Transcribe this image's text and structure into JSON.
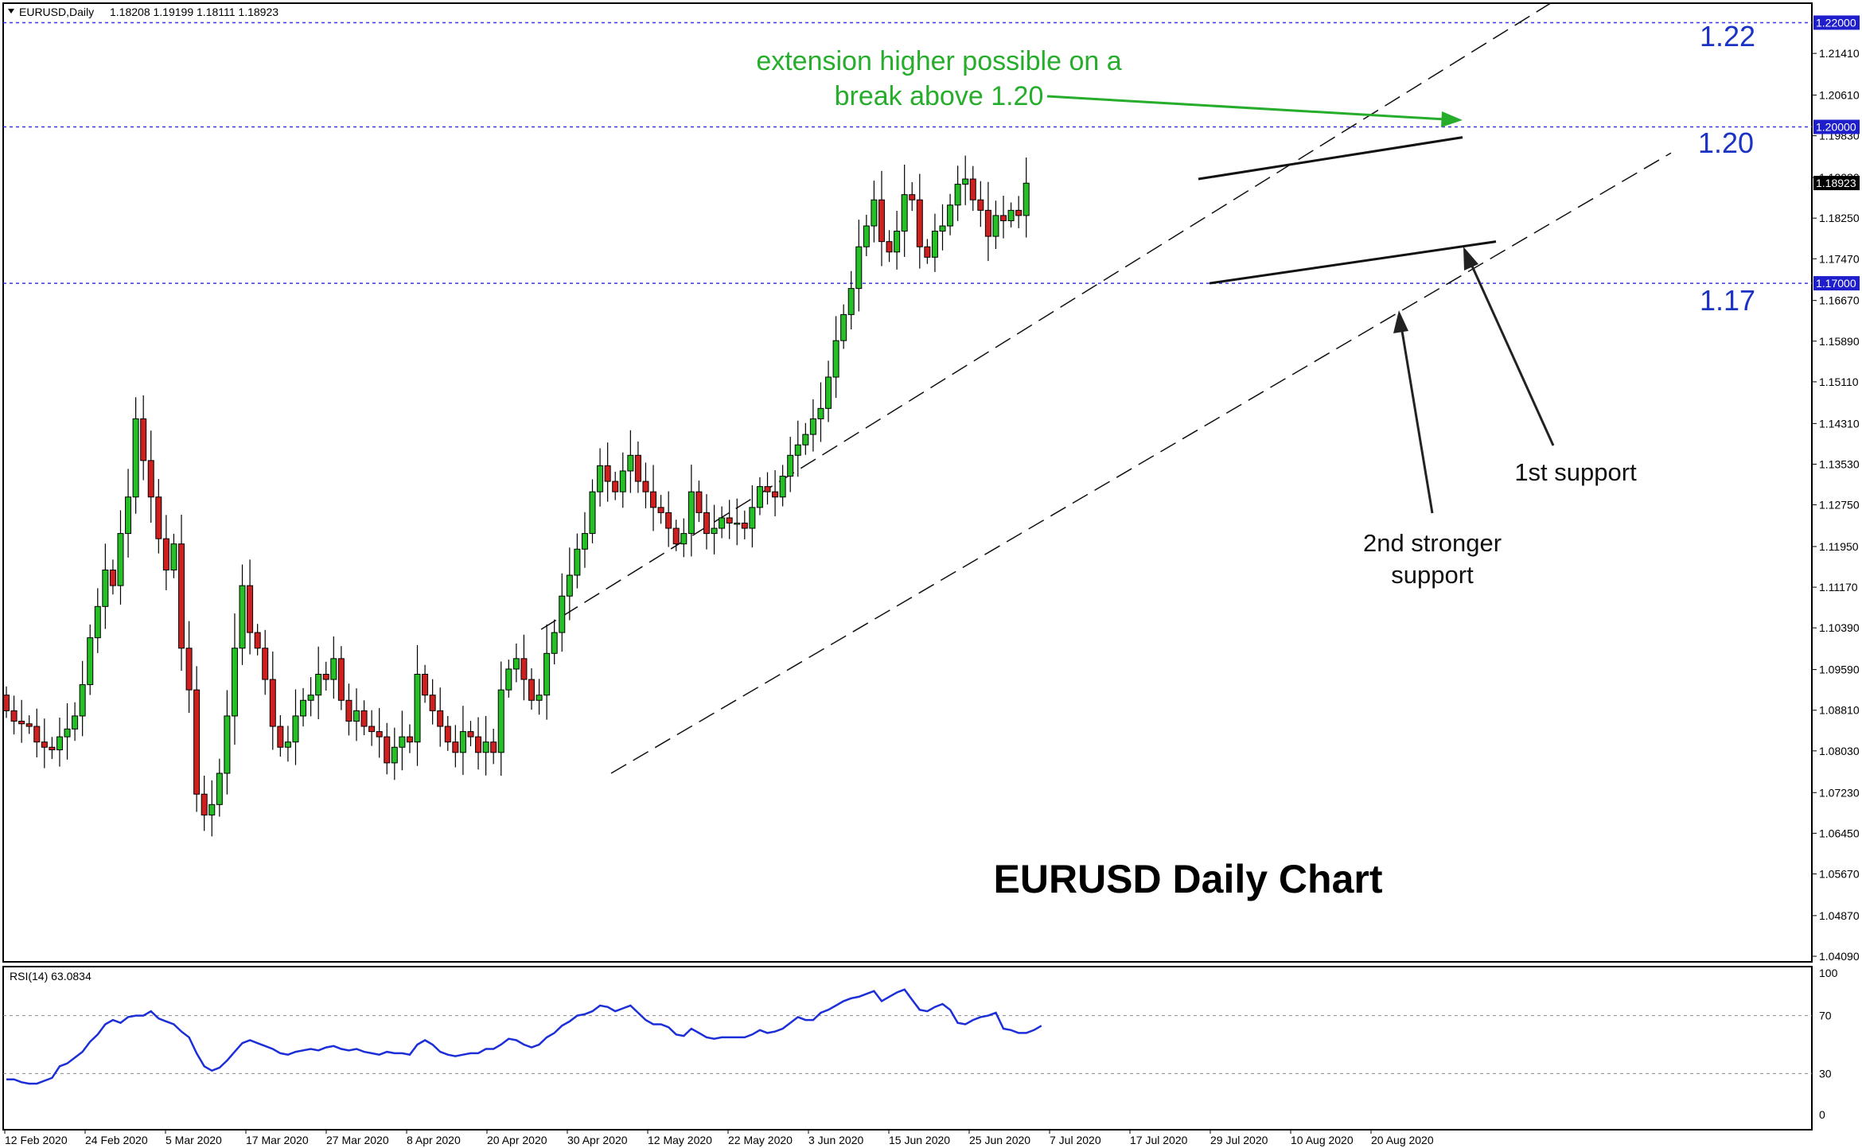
{
  "header": {
    "symbol": "EURUSD,Daily",
    "ohlc": "1.18208 1.19199 1.18111 1.18923"
  },
  "rsi_header": "RSI(14) 63.0834",
  "colors": {
    "bull": "#25c025",
    "bear": "#d01f1f",
    "level_line": "#3a3ad8",
    "rsi_line": "#1c2ed8",
    "tag_bg": "#1e1ecc",
    "green_text": "#26ad2c",
    "level_text": "#1a33c4"
  },
  "annotations": {
    "level_122": "1.22",
    "level_120": "1.20",
    "level_117": "1.17",
    "green_note_line1": "extension higher possible on a",
    "green_note_line2": "break above 1.20",
    "first_support": "1st support",
    "second_support_line1": "2nd stronger",
    "second_support_line2": "support",
    "chart_title": "EURUSD Daily Chart"
  },
  "chart_data": {
    "type": "candlestick",
    "title": "EURUSD Daily Chart",
    "y_range": [
      1.0409,
      1.2219
    ],
    "y_ticks": [
      "1.21410",
      "1.20610",
      "1.19830",
      "1.19030",
      "1.18250",
      "1.17470",
      "1.16670",
      "1.15890",
      "1.15110",
      "1.14310",
      "1.13530",
      "1.12750",
      "1.11950",
      "1.11170",
      "1.10390",
      "1.09590",
      "1.08810",
      "1.08030",
      "1.07230",
      "1.06450",
      "1.05670",
      "1.04870",
      "1.04090"
    ],
    "x_tick_labels": [
      "12 Feb 2020",
      "24 Feb 2020",
      "5 Mar 2020",
      "17 Mar 2020",
      "27 Mar 2020",
      "8 Apr 2020",
      "20 Apr 2020",
      "30 Apr 2020",
      "12 May 2020",
      "22 May 2020",
      "3 Jun 2020",
      "15 Jun 2020",
      "25 Jun 2020",
      "7 Jul 2020",
      "17 Jul 2020",
      "29 Jul 2020",
      "10 Aug 2020",
      "20 Aug 2020"
    ],
    "price_tags": [
      "1.22000",
      "1.20000",
      "1.18923",
      "1.17000"
    ],
    "horizontal_levels": [
      1.22,
      1.2,
      1.17
    ],
    "last_price": 1.18923,
    "closes": [
      1.088,
      1.086,
      1.0855,
      1.085,
      1.082,
      1.081,
      1.0805,
      1.083,
      1.0845,
      1.087,
      1.093,
      1.102,
      1.108,
      1.115,
      1.112,
      1.122,
      1.129,
      1.144,
      1.136,
      1.129,
      1.121,
      1.115,
      1.12,
      1.1,
      1.092,
      1.072,
      1.068,
      1.07,
      1.076,
      1.087,
      1.1,
      1.112,
      1.103,
      1.1,
      1.094,
      1.085,
      1.081,
      1.082,
      1.087,
      1.09,
      1.091,
      1.095,
      1.094,
      1.098,
      1.09,
      1.086,
      1.088,
      1.085,
      1.084,
      1.083,
      1.078,
      1.081,
      1.083,
      1.082,
      1.095,
      1.091,
      1.088,
      1.085,
      1.082,
      1.08,
      1.084,
      1.083,
      1.08,
      1.082,
      1.08,
      1.092,
      1.096,
      1.098,
      1.094,
      1.09,
      1.091,
      1.099,
      1.103,
      1.11,
      1.114,
      1.119,
      1.122,
      1.13,
      1.135,
      1.132,
      1.13,
      1.134,
      1.137,
      1.132,
      1.13,
      1.127,
      1.126,
      1.123,
      1.12,
      1.122,
      1.13,
      1.126,
      1.122,
      1.123,
      1.125,
      1.124,
      1.124,
      1.123,
      1.127,
      1.131,
      1.13,
      1.129,
      1.133,
      1.137,
      1.139,
      1.141,
      1.144,
      1.146,
      1.152,
      1.159,
      1.164,
      1.169,
      1.177,
      1.181,
      1.186,
      1.178,
      1.176,
      1.18,
      1.187,
      1.186,
      1.177,
      1.175,
      1.18,
      1.181,
      1.185,
      1.189,
      1.19,
      1.186,
      1.184,
      1.179,
      1.183,
      1.182,
      1.184,
      1.183,
      1.1892
    ],
    "rsi": {
      "label": "RSI(14) 63.0834",
      "value": 63.0834,
      "range": [
        0,
        100
      ],
      "ticks": [
        100,
        70,
        30,
        0
      ],
      "values": [
        26,
        26,
        24,
        23,
        23,
        25,
        27,
        35,
        37,
        41,
        45,
        52,
        57,
        64,
        67,
        65,
        69,
        70,
        70,
        73,
        68,
        66,
        64,
        59,
        55,
        44,
        35,
        32,
        34,
        39,
        45,
        51,
        53,
        51,
        49,
        47,
        44,
        43,
        45,
        46,
        47,
        46,
        48,
        49,
        47,
        46,
        47,
        45,
        44,
        43,
        45,
        44,
        44,
        43,
        50,
        53,
        50,
        45,
        43,
        42,
        43,
        44,
        44,
        47,
        47,
        50,
        54,
        53,
        50,
        48,
        50,
        55,
        58,
        63,
        66,
        70,
        71,
        73,
        77,
        76,
        73,
        75,
        77,
        72,
        67,
        64,
        64,
        62,
        57,
        56,
        61,
        58,
        55,
        54,
        55,
        55,
        55,
        55,
        57,
        60,
        58,
        59,
        61,
        65,
        69,
        67,
        67,
        72,
        74,
        77,
        80,
        82,
        83,
        85,
        87,
        80,
        83,
        86,
        88,
        81,
        74,
        73,
        76,
        78,
        74,
        65,
        64,
        67,
        69,
        70,
        72,
        61,
        60,
        58,
        58,
        60,
        63
      ]
    }
  }
}
